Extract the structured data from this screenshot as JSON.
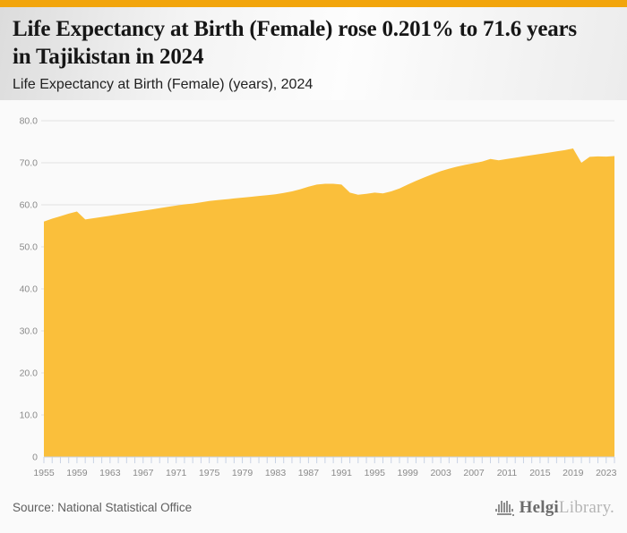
{
  "header": {
    "title": "Life Expectancy at Birth (Female) rose 0.201% to 71.6 years in Tajikistan in 2024",
    "subtitle": "Life Expectancy at Birth (Female) (years), 2024"
  },
  "footer": {
    "source": "Source: National Statistical Office",
    "logo_primary": "Helgi",
    "logo_secondary": "Library."
  },
  "colors": {
    "top_bar": "#F2A50C",
    "area_fill": "#FABF3B",
    "page_bg": "#FAFAFA",
    "gridline": "#E3E3E3",
    "axis_text": "#8A8A8A",
    "tick": "#C9D3E4",
    "title_text": "#161616",
    "subtitle_text": "#222222",
    "source_text": "#5E5E5E",
    "logo_icon": "#8E8E8E",
    "logo_primary": "#6B6B6B",
    "logo_secondary": "#B5B5B5"
  },
  "chart_data": {
    "type": "area",
    "title": "Life Expectancy at Birth (Female) (years), 2024",
    "xlabel": "",
    "ylabel": "",
    "ylim": [
      0,
      80
    ],
    "grid": true,
    "legend": false,
    "x": [
      1955,
      1956,
      1957,
      1958,
      1959,
      1960,
      1961,
      1962,
      1963,
      1964,
      1965,
      1966,
      1967,
      1968,
      1969,
      1970,
      1971,
      1972,
      1973,
      1974,
      1975,
      1976,
      1977,
      1978,
      1979,
      1980,
      1981,
      1982,
      1983,
      1984,
      1985,
      1986,
      1987,
      1988,
      1989,
      1990,
      1991,
      1992,
      1993,
      1994,
      1995,
      1996,
      1997,
      1998,
      1999,
      2000,
      2001,
      2002,
      2003,
      2004,
      2005,
      2006,
      2007,
      2008,
      2009,
      2010,
      2011,
      2012,
      2013,
      2014,
      2015,
      2016,
      2017,
      2018,
      2019,
      2020,
      2021,
      2022,
      2023,
      2024
    ],
    "values": [
      56.0,
      56.7,
      57.3,
      57.9,
      58.4,
      56.5,
      56.8,
      57.1,
      57.4,
      57.7,
      58.0,
      58.3,
      58.6,
      58.9,
      59.2,
      59.5,
      59.8,
      60.1,
      60.3,
      60.6,
      60.9,
      61.1,
      61.3,
      61.5,
      61.7,
      61.9,
      62.1,
      62.3,
      62.5,
      62.8,
      63.2,
      63.7,
      64.3,
      64.8,
      65.0,
      65.0,
      64.8,
      62.9,
      62.4,
      62.6,
      62.9,
      62.7,
      63.2,
      63.9,
      64.8,
      65.7,
      66.5,
      67.3,
      68.0,
      68.6,
      69.1,
      69.5,
      69.9,
      70.3,
      70.9,
      70.6,
      70.9,
      71.2,
      71.5,
      71.8,
      72.1,
      72.4,
      72.7,
      73.0,
      73.4,
      70.0,
      71.4,
      71.5,
      71.46,
      71.6
    ],
    "yticks": [
      {
        "v": 80,
        "label": "80.0"
      },
      {
        "v": 70,
        "label": "70.0"
      },
      {
        "v": 60,
        "label": "60.0"
      },
      {
        "v": 50,
        "label": "50.0"
      },
      {
        "v": 40,
        "label": "40.0"
      },
      {
        "v": 30,
        "label": "30.0"
      },
      {
        "v": 20,
        "label": "20.0"
      },
      {
        "v": 10,
        "label": "10.0"
      },
      {
        "v": 0,
        "label": "0"
      }
    ],
    "xtick_years": [
      1955,
      1959,
      1963,
      1967,
      1971,
      1975,
      1979,
      1983,
      1987,
      1991,
      1995,
      1999,
      2003,
      2007,
      2011,
      2015,
      2019,
      2023
    ]
  }
}
